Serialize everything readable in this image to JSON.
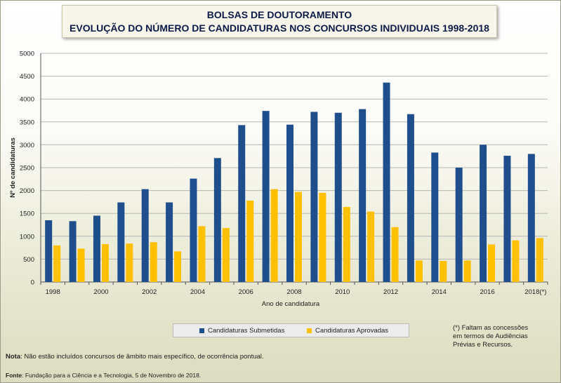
{
  "colors": {
    "submitted": "#1f4e8c",
    "approved": "#ffc000",
    "grid": "#b5b5b5",
    "axis": "#555555"
  },
  "chart_data": {
    "type": "bar",
    "title": "BOLSAS DE DOUTORAMENTO",
    "subtitle": "EVOLUÇÃO DO NÚMERO DE CANDIDATURAS NOS CONCURSOS INDIVIDUAIS 1998-2018",
    "xlabel": "Ano de candidatura",
    "ylabel": "Nº de candidaturas",
    "ylim": [
      0,
      5000
    ],
    "yticks": [
      0,
      500,
      1000,
      1500,
      2000,
      2500,
      3000,
      3500,
      4000,
      4500,
      5000
    ],
    "grid": true,
    "legend_position": "bottom",
    "categories": [
      "1998",
      "1999",
      "2000",
      "2001",
      "2002",
      "2003",
      "2004",
      "2005",
      "2006",
      "2007",
      "2008",
      "2009",
      "2010",
      "2011",
      "2012",
      "2013",
      "2014",
      "2015",
      "2016",
      "2017",
      "2018"
    ],
    "xtick_labels": [
      "1998",
      "",
      "2000",
      "",
      "2002",
      "",
      "2004",
      "",
      "2006",
      "",
      "2008",
      "",
      "2010",
      "",
      "2012",
      "",
      "2014",
      "",
      "2016",
      "",
      "2018(*)"
    ],
    "series": [
      {
        "name": "Candidaturas Submetidas",
        "values": [
          1350,
          1330,
          1450,
          1740,
          2030,
          1740,
          2260,
          2710,
          3430,
          3740,
          3440,
          3720,
          3700,
          3780,
          4360,
          3670,
          2830,
          2500,
          3000,
          2760,
          2800
        ]
      },
      {
        "name": "Candidaturas Aprovadas",
        "values": [
          800,
          730,
          830,
          840,
          870,
          670,
          1220,
          1180,
          1780,
          2030,
          1970,
          1950,
          1640,
          1540,
          1200,
          470,
          460,
          470,
          820,
          910,
          960
        ]
      }
    ]
  },
  "footnote": "(*) Faltam as concessões\nem termos de Audiências\nPrévias e Recursos.",
  "nota": {
    "label": "Nota",
    "text": ": Não estão incluídos concursos de âmbito mais específico, de ocorrência pontual."
  },
  "fonte": {
    "label": "Fonte",
    "text": ": Fundação para a Ciência e a Tecnologia, 5 de Novembro de 2018."
  }
}
